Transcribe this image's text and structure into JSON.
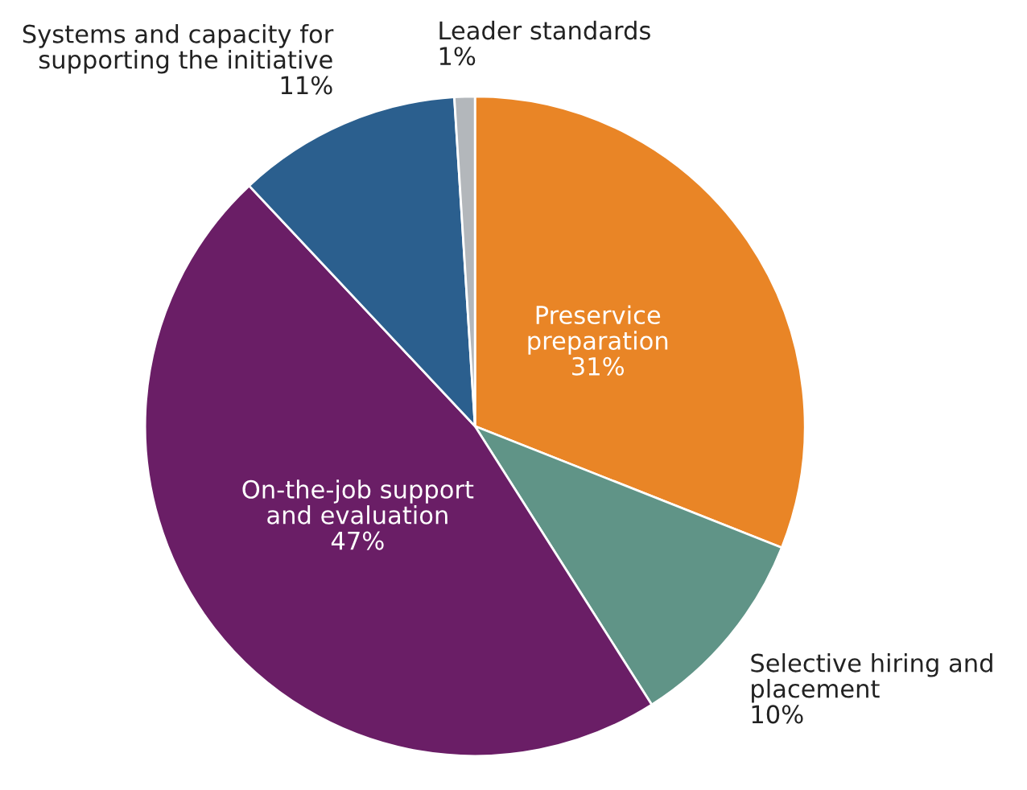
{
  "chart_data": {
    "type": "pie",
    "categories": [
      "Preservice\npreparation",
      "Selective hiring and\nplacement",
      "On-the-job support\nand evaluation",
      "Systems and capacity for\nsupporting the initiative",
      "Leader standards"
    ],
    "values": [
      31,
      10,
      47,
      11,
      1
    ],
    "colors": [
      "#e98526",
      "#609487",
      "#6a1e66",
      "#2b5f8e",
      "#b3b7bb"
    ],
    "value_labels": [
      "31%",
      "10%",
      "47%",
      "11%",
      "1%"
    ]
  }
}
